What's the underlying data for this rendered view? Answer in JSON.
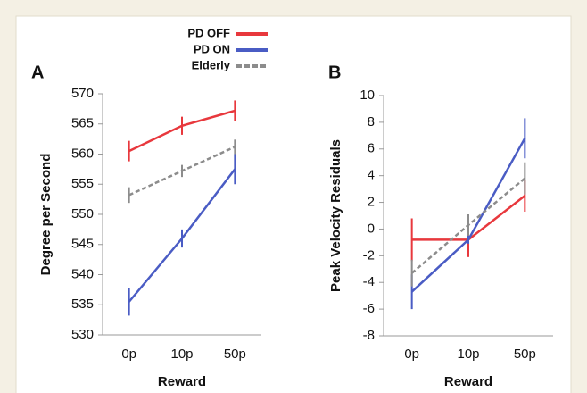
{
  "legend": [
    {
      "name": "PD OFF",
      "color": "#e8383d",
      "dashed": false
    },
    {
      "name": "PD ON",
      "color": "#4a5cc4",
      "dashed": false
    },
    {
      "name": "Elderly",
      "color": "#8c8c8c",
      "dashed": true
    }
  ],
  "chart_data": [
    {
      "type": "line",
      "label": "A",
      "xlabel": "Reward",
      "ylabel": "Degree per Second",
      "categories": [
        "0p",
        "10p",
        "50p"
      ],
      "series": [
        {
          "values": [
            560.5,
            564.7,
            567.2
          ],
          "errors": [
            1.7,
            1.5,
            1.7
          ]
        },
        {
          "values": [
            535.5,
            546,
            557.5
          ],
          "errors": [
            2.3,
            1.5,
            2.5
          ]
        },
        {
          "values": [
            553.2,
            557.2,
            561.2
          ],
          "errors": [
            1.3,
            1.0,
            1.2
          ]
        }
      ],
      "ylim": [
        530,
        570
      ],
      "yticks": [
        530,
        535,
        540,
        545,
        550,
        555,
        560,
        565,
        570
      ]
    },
    {
      "type": "line",
      "label": "B",
      "xlabel": "Reward",
      "ylabel": "Peak Velocity Residuals",
      "categories": [
        "0p",
        "10p",
        "50p"
      ],
      "series": [
        {
          "values": [
            -0.8,
            -0.8,
            2.5
          ],
          "errors": [
            1.6,
            1.3,
            1.2
          ]
        },
        {
          "values": [
            -4.7,
            -0.8,
            6.8
          ],
          "errors": [
            1.3,
            0.3,
            1.5
          ]
        },
        {
          "values": [
            -3.3,
            0.3,
            3.8
          ],
          "errors": [
            1.0,
            0.8,
            1.2
          ]
        }
      ],
      "ylim": [
        -8,
        10
      ],
      "yticks": [
        -8,
        -6,
        -4,
        -2,
        0,
        2,
        4,
        6,
        8,
        10
      ]
    }
  ]
}
